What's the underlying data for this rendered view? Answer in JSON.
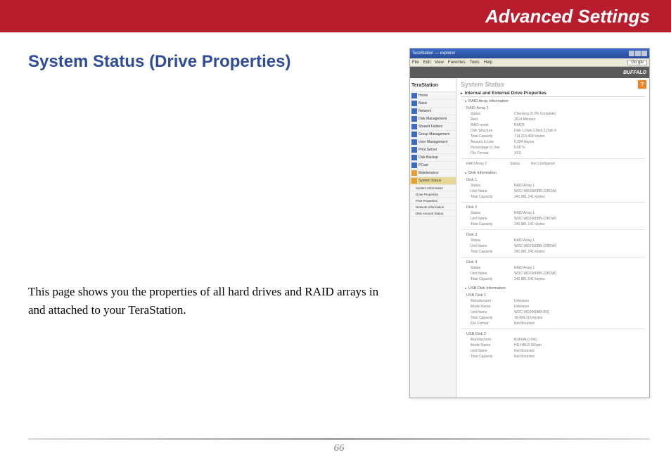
{
  "header": {
    "title": "Advanced Settings"
  },
  "section": {
    "title": "System Status (Drive Properties)"
  },
  "body": {
    "text": "This page shows you the properties of all hard drives and RAID arrays in and attached to your TeraStation."
  },
  "footer": {
    "page": "66"
  },
  "screenshot": {
    "window_title": "TeraStation — explorer",
    "menus": [
      "File",
      "Edit",
      "View",
      "Favorites",
      "Tools",
      "Help"
    ],
    "google_btn": "Go gle",
    "brand": "BUFFALO",
    "sidebar_logo": "TeraStation",
    "nav": [
      {
        "label": "Home",
        "icon": "blue"
      },
      {
        "label": "Basic",
        "icon": "blue"
      },
      {
        "label": "Network",
        "icon": "blue"
      },
      {
        "label": "Disk Management",
        "icon": "blue"
      },
      {
        "label": "Shared Folders",
        "icon": "blue"
      },
      {
        "label": "Group Management",
        "icon": "blue"
      },
      {
        "label": "User Management",
        "icon": "blue"
      },
      {
        "label": "Print Server",
        "icon": "blue"
      },
      {
        "label": "Disk Backup",
        "icon": "blue"
      },
      {
        "label": "PCast",
        "icon": "blue"
      },
      {
        "label": "Maintenance",
        "icon": "orange"
      },
      {
        "label": "System Status",
        "icon": "orange",
        "active": true
      }
    ],
    "subnav": [
      {
        "label": "System Information"
      },
      {
        "label": "Drive Properties"
      },
      {
        "label": "Print Properties"
      },
      {
        "label": "Network Information"
      },
      {
        "label": "Disk Amount Status"
      }
    ],
    "page_title": "System Status",
    "section_header": "Internal and External Drive Properties",
    "raid_info_header": "RAID Array Information",
    "raid1": {
      "name": "RAID Array 1",
      "rows": [
        {
          "k": "Status",
          "v": "Checking (0.3% Complete)"
        },
        {
          "k": "Rest",
          "v": "2614 Minutes"
        },
        {
          "k": "RAID mode",
          "v": "RAID5"
        },
        {
          "k": "Disk Structure",
          "v": "Disk 1,Disk 2,Disk 3,Disk 4"
        },
        {
          "k": "Total Capacity",
          "v": "714,213,468 kbytes"
        },
        {
          "k": "Amount In Use",
          "v": "6,284 kbytes"
        },
        {
          "k": "Percentage In Use",
          "v": "0.00 %"
        },
        {
          "k": "File Format",
          "v": "XFS"
        }
      ]
    },
    "raid2": {
      "name": "RAID Array 2",
      "status_label": "Status",
      "status_value": "Not Configured"
    },
    "disk_info_header": "Disk Information",
    "disks": [
      {
        "name": "Disk 1",
        "rows": [
          {
            "k": "Status",
            "v": "RAID Array 1"
          },
          {
            "k": "Unit Name",
            "v": "WDC WD2500BB-22RDA0"
          },
          {
            "k": "Total Capacity",
            "v": "242,881,141 kbytes"
          }
        ]
      },
      {
        "name": "Disk 2",
        "rows": [
          {
            "k": "Status",
            "v": "RAID Array 1"
          },
          {
            "k": "Unit Name",
            "v": "WDC WD2500BB-22RDA0"
          },
          {
            "k": "Total Capacity",
            "v": "242,881,141 kbytes"
          }
        ]
      },
      {
        "name": "Disk 3",
        "rows": [
          {
            "k": "Status",
            "v": "RAID Array 1"
          },
          {
            "k": "Unit Name",
            "v": "WDC WD2500BB-22RDA0"
          },
          {
            "k": "Total Capacity",
            "v": "242,881,141 kbytes"
          }
        ]
      },
      {
        "name": "Disk 4",
        "rows": [
          {
            "k": "Status",
            "v": "RAID Array 1"
          },
          {
            "k": "Unit Name",
            "v": "WDC WD2500BB-22RDA0"
          },
          {
            "k": "Total Capacity",
            "v": "242,881,141 kbytes"
          }
        ]
      }
    ],
    "usb_info_header": "USB Disk Information",
    "usb": [
      {
        "name": "USB Disk 1",
        "rows": [
          {
            "k": "Manufacturer",
            "v": "Unknown"
          },
          {
            "k": "Model Name",
            "v": "Unknown"
          },
          {
            "k": "Unit Name",
            "v": "WDC WD2000BB-00C"
          },
          {
            "k": "Total Capacity",
            "v": "19,494,116 kbytes"
          },
          {
            "k": "File Format",
            "v": "Not Mounted"
          }
        ]
      },
      {
        "name": "USB Disk 2",
        "rows": [
          {
            "k": "Manufacturer",
            "v": "BUFFALO INC."
          },
          {
            "k": "Model Name",
            "v": "HD-HBU2 500gm"
          },
          {
            "k": "Unit Name",
            "v": "Not Mounted"
          },
          {
            "k": "Total Capacity",
            "v": "Not Mounted"
          }
        ]
      }
    ]
  },
  "colors": {
    "header_bg": "#b81d2e",
    "section_title": "#2f4c99",
    "page_num": "#808080"
  }
}
